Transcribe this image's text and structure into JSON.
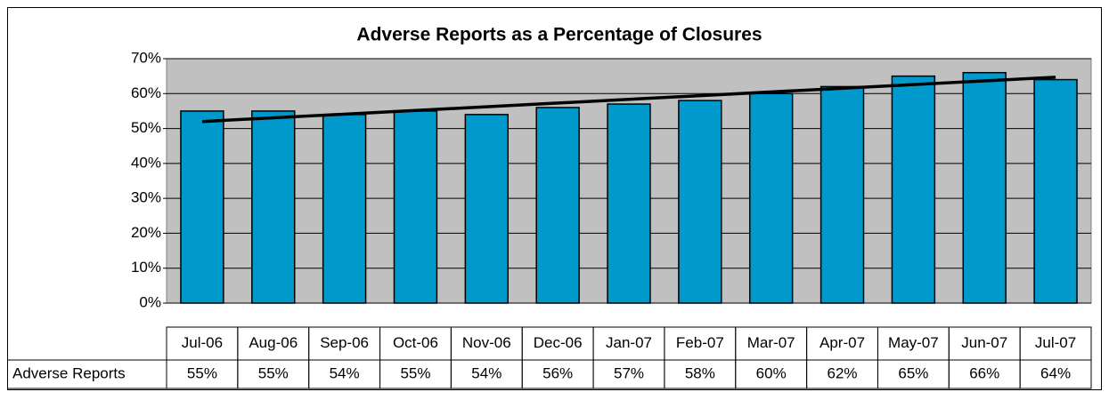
{
  "chart_data": {
    "type": "bar",
    "title": "Adverse Reports as a Percentage of Closures",
    "categories": [
      "Jul-06",
      "Aug-06",
      "Sep-06",
      "Oct-06",
      "Nov-06",
      "Dec-06",
      "Jan-07",
      "Feb-07",
      "Mar-07",
      "Apr-07",
      "May-07",
      "Jun-07",
      "Jul-07"
    ],
    "series": [
      {
        "name": "Adverse Reports",
        "color": "#0099cc",
        "values": [
          55,
          55,
          54,
          55,
          54,
          56,
          57,
          58,
          60,
          62,
          65,
          66,
          64
        ],
        "value_labels": [
          "55%",
          "55%",
          "54%",
          "55%",
          "54%",
          "56%",
          "57%",
          "58%",
          "60%",
          "62%",
          "65%",
          "66%",
          "64%"
        ]
      }
    ],
    "trendline": [
      52,
      64.7
    ],
    "ylim": [
      0,
      70
    ],
    "yticks": [
      {
        "value": 0,
        "label": "0%"
      },
      {
        "value": 10,
        "label": "10%"
      },
      {
        "value": 20,
        "label": "20%"
      },
      {
        "value": 30,
        "label": "30%"
      },
      {
        "value": 40,
        "label": "40%"
      },
      {
        "value": 50,
        "label": "50%"
      },
      {
        "value": 60,
        "label": "60%"
      },
      {
        "value": 70,
        "label": "70%"
      }
    ],
    "grid": true,
    "data_table": true
  }
}
